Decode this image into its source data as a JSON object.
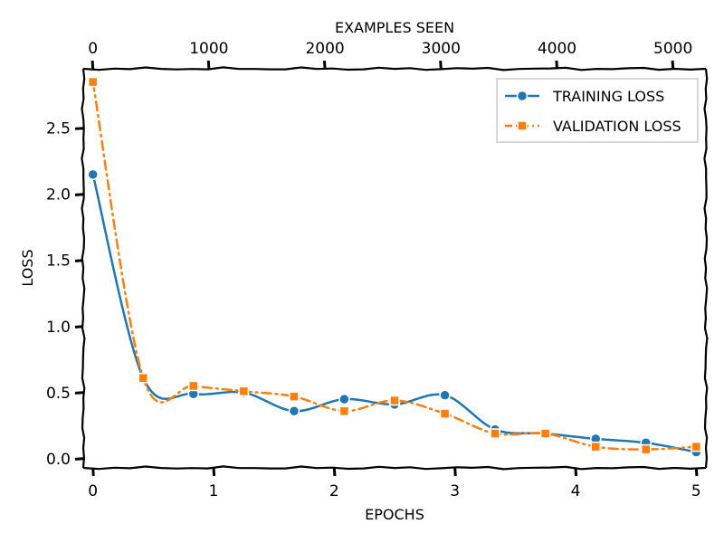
{
  "chart_data": {
    "type": "line",
    "title": "",
    "xlabel": "EPOCHS",
    "ylabel": "LOSS",
    "x2label": "EXAMPLES SEEN",
    "xlim": [
      -0.08,
      5.08
    ],
    "ylim": [
      -0.07,
      2.95
    ],
    "x_ticks": [
      0,
      1,
      2,
      3,
      4,
      5
    ],
    "x_tick_labels": [
      "0",
      "1",
      "2",
      "3",
      "4",
      "5"
    ],
    "y_ticks": [
      0.0,
      0.5,
      1.0,
      1.5,
      2.0,
      2.5
    ],
    "y_tick_labels": [
      "0.0",
      "0.5",
      "1.0",
      "1.5",
      "2.0",
      "2.5"
    ],
    "x2_ticks": [
      0,
      1000,
      2000,
      3000,
      4000,
      5000
    ],
    "x2_tick_labels": [
      "0",
      "1000",
      "2000",
      "3000",
      "4000",
      "5000"
    ],
    "x2_per_epoch": 1040,
    "grid": false,
    "legend_position": "top-right",
    "series": [
      {
        "name": "TRAINING LOSS",
        "color": "#1f77b4",
        "marker": "circle",
        "line_style": "solid",
        "x": [
          0.0,
          0.417,
          0.833,
          1.25,
          1.667,
          2.083,
          2.5,
          2.917,
          3.333,
          3.75,
          4.167,
          4.583,
          5.0
        ],
        "y": [
          2.15,
          0.61,
          0.49,
          0.5,
          0.36,
          0.45,
          0.41,
          0.48,
          0.22,
          0.19,
          0.15,
          0.12,
          0.05
        ]
      },
      {
        "name": "VALIDATION LOSS",
        "color": "#ff7f0e",
        "marker": "square",
        "line_style": "dash-dot",
        "x": [
          0.0,
          0.417,
          0.833,
          1.25,
          1.667,
          2.083,
          2.5,
          2.917,
          3.333,
          3.75,
          4.167,
          4.583,
          5.0
        ],
        "y": [
          2.85,
          0.61,
          0.55,
          0.51,
          0.47,
          0.36,
          0.44,
          0.34,
          0.19,
          0.19,
          0.09,
          0.07,
          0.09
        ]
      }
    ]
  }
}
